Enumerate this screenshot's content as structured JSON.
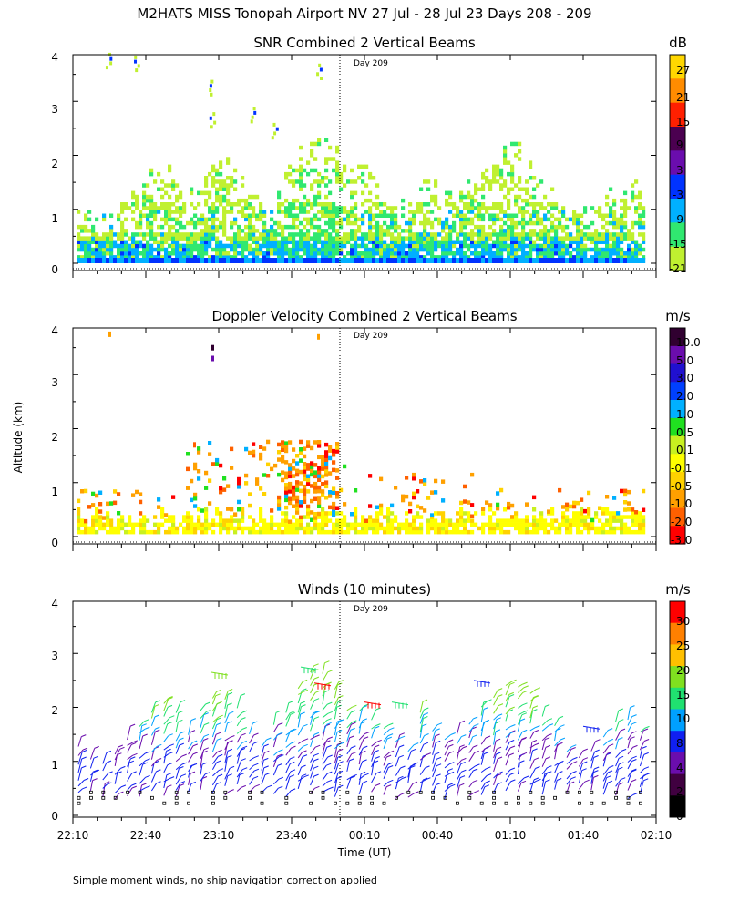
{
  "figure": {
    "title": "M2HATS MISS Tonopah Airport NV  27 Jul - 28 Jul 23 Days 208 - 209",
    "ylabel": "Altitude (km)",
    "xlabel": "Time (UT)",
    "footnote": "Simple moment winds, no ship navigation correction applied",
    "day_marker": "Day 209"
  },
  "chart_data": [
    {
      "type": "heatmap",
      "title": "SNR Combined 2 Vertical Beams",
      "units": "dB",
      "xlabel": "Time (UT)",
      "ylabel": "Altitude (km)",
      "x_ticks": [
        "22:10",
        "22:40",
        "23:10",
        "23:40",
        "00:10",
        "00:40",
        "01:10",
        "01:40",
        "02:10"
      ],
      "y_ticks": [
        "0",
        "1",
        "2",
        "3",
        "4"
      ],
      "ylim": [
        0,
        4
      ],
      "colorbar": {
        "labels": [
          "27",
          "21",
          "15",
          "9",
          "3",
          "-3",
          "-9",
          "-15",
          "-21"
        ],
        "colors": [
          "#ffd700",
          "#ff8c00",
          "#ff2000",
          "#4b0050",
          "#6a0dad",
          "#0033ff",
          "#00b0ff",
          "#30e870",
          "#c0f030"
        ]
      },
      "dominant_values": "mostly -21 to -15 dB above 0.2 km; -9 to -3 dB near surface; signal top ~1.5-2.3 km"
    },
    {
      "type": "heatmap",
      "title": "Doppler Velocity Combined 2 Vertical Beams",
      "units": "m/s",
      "xlabel": "Time (UT)",
      "ylabel": "Altitude (km)",
      "x_ticks": [
        "22:10",
        "22:40",
        "23:10",
        "23:40",
        "00:10",
        "00:40",
        "01:10",
        "01:40",
        "02:10"
      ],
      "y_ticks": [
        "0",
        "1",
        "2",
        "3",
        "4"
      ],
      "ylim": [
        0,
        4
      ],
      "colorbar": {
        "labels": [
          "10.0",
          "5.0",
          "3.0",
          "2.0",
          "1.0",
          "0.5",
          "0.1",
          "-0.1",
          "-0.5",
          "-1.0",
          "-2.0",
          "-3.0"
        ],
        "colors": [
          "#300030",
          "#6a0dad",
          "#2010d0",
          "#0040ff",
          "#00b0ff",
          "#20e020",
          "#c8f020",
          "#ffff00",
          "#ffd200",
          "#ffa000",
          "#ff6000",
          "#ff0000"
        ]
      },
      "dominant_values": "mostly -0.1 to 0.1 m/s below 0.5 km; scattered -1 to -3 m/s up to ~1.8 km"
    },
    {
      "type": "scatter",
      "title": "Winds (10 minutes)",
      "units": "m/s",
      "xlabel": "Time (UT)",
      "ylabel": "Altitude (km)",
      "x_ticks": [
        "22:10",
        "22:40",
        "23:10",
        "23:40",
        "00:10",
        "00:40",
        "01:10",
        "01:40",
        "02:10"
      ],
      "y_ticks": [
        "0",
        "1",
        "2",
        "3",
        "4"
      ],
      "ylim": [
        0,
        4
      ],
      "colorbar": {
        "labels": [
          "30",
          "25",
          "20",
          "15",
          "10",
          "8",
          "4",
          "2",
          "0"
        ],
        "colors": [
          "#ff0000",
          "#ff8000",
          "#ffc000",
          "#80e020",
          "#20e070",
          "#00a0ff",
          "#1020f0",
          "#6a0dad",
          "#400040",
          "#000000"
        ]
      },
      "dominant_values": "wind barbs every 10 min, mostly 2-10 m/s below 2 km, 15-30 m/s near 2.5 km"
    }
  ]
}
